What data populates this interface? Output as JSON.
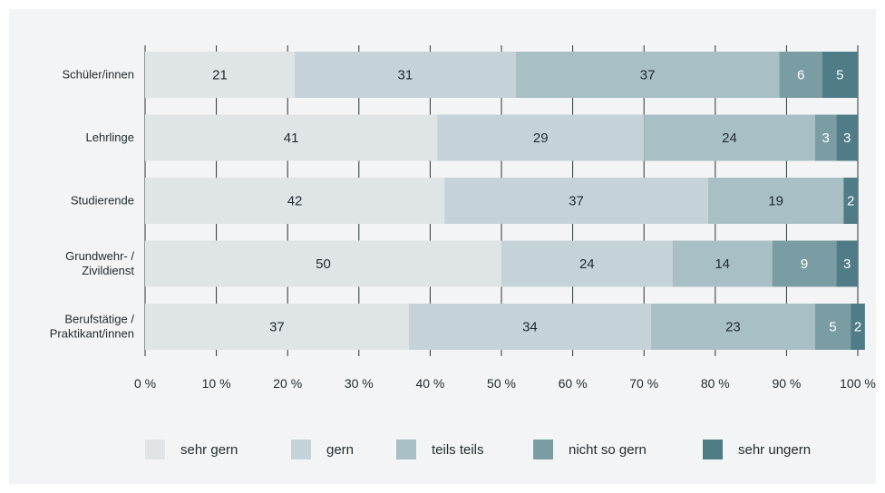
{
  "chart_data": {
    "type": "bar",
    "orientation": "horizontal",
    "stacked": true,
    "categories": [
      [
        "Schüler/innen"
      ],
      [
        "Lehrlinge"
      ],
      [
        "Studierende"
      ],
      [
        "Grundwehr- /",
        "Zivildienst"
      ],
      [
        "Berufstätige /",
        "Praktikant/innen"
      ]
    ],
    "series": [
      {
        "name": "sehr gern",
        "values": [
          21,
          41,
          42,
          50,
          37
        ],
        "color": "#dfe4e6",
        "label_color": "#1f2a30"
      },
      {
        "name": "gern",
        "values": [
          31,
          29,
          37,
          24,
          34
        ],
        "color": "#c5d3d8",
        "label_color": "#1f2a30"
      },
      {
        "name": "teils teils",
        "values": [
          37,
          24,
          19,
          14,
          23
        ],
        "color": "#a9bfc6",
        "label_color": "#1f2a30"
      },
      {
        "name": "nicht so gern",
        "values": [
          6,
          3,
          0,
          9,
          5
        ],
        "color": "#7a9da4",
        "label_color": "#ffffff"
      },
      {
        "name": "sehr ungern",
        "values": [
          5,
          3,
          2,
          3,
          2
        ],
        "color": "#4f7c86",
        "label_color": "#ffffff"
      }
    ],
    "x_ticks": [
      "0 %",
      "10 %",
      "20 %",
      "30 %",
      "40 %",
      "50 %",
      "60 %",
      "70 %",
      "80 %",
      "90 %",
      "100 %"
    ],
    "xlim": [
      0,
      100
    ],
    "legend_position": "bottom",
    "grid": true
  }
}
